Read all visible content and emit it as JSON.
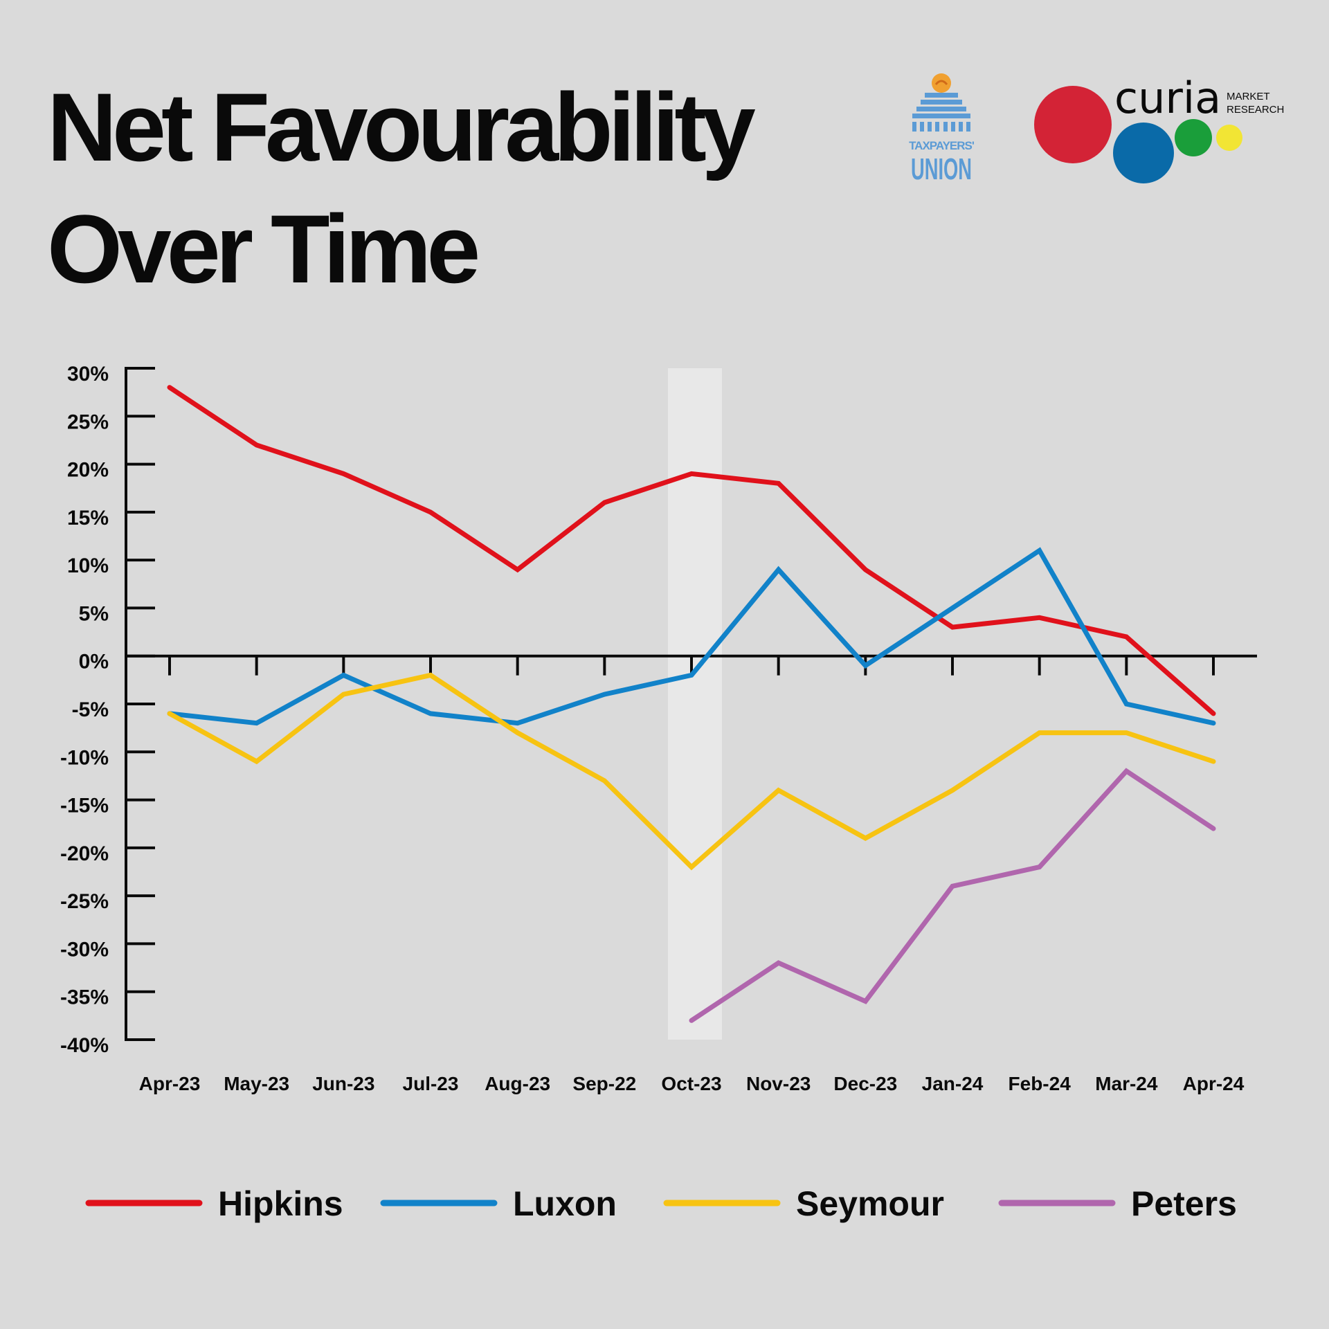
{
  "header": {
    "title_line1": "Net Favourability",
    "title_line2": "Over Time"
  },
  "logos": {
    "taxpayers_union": {
      "line1": "TAXPAYERS'",
      "line2": "UNION",
      "color": "#5b9bd5",
      "dome_color": "#f0a030"
    },
    "curia": {
      "name": "curia",
      "tag_line1": "MARKET",
      "tag_line2": "RESEARCH",
      "dot_colors": [
        "#d32336",
        "#0a6aa8",
        "#1a9e3a",
        "#f2e534"
      ]
    }
  },
  "chart_data": {
    "type": "line",
    "title": "Net Favourability Over Time",
    "xlabel": "",
    "ylabel": "",
    "ylim": [
      -40,
      30
    ],
    "ytick_values": [
      30,
      25,
      20,
      15,
      10,
      5,
      0,
      -5,
      -10,
      -15,
      -20,
      -25,
      -30,
      -35,
      -40
    ],
    "ytick_labels": [
      "30%",
      "25%",
      "20%",
      "15%",
      "10%",
      "5%",
      "0%",
      "-5%",
      "-10%",
      "-15%",
      "-20%",
      "-25%",
      "-30%",
      "-35%",
      "-40%"
    ],
    "categories": [
      "Apr-23",
      "May-23",
      "Jun-23",
      "Jul-23",
      "Aug-23",
      "Sep-22",
      "Oct-23",
      "Nov-23",
      "Dec-23",
      "Jan-24",
      "Feb-24",
      "Mar-24",
      "Apr-24"
    ],
    "highlight_category": "Oct-23",
    "highlight_color": "#e8e8e8",
    "grid": false,
    "legend_position": "bottom",
    "series": [
      {
        "name": "Hipkins",
        "color": "#e0111b",
        "values": [
          28,
          22,
          19,
          15,
          9,
          16,
          19,
          18,
          9,
          3,
          4,
          2,
          -6
        ]
      },
      {
        "name": "Luxon",
        "color": "#1182c9",
        "values": [
          -6,
          -7,
          -2,
          -6,
          -7,
          -4,
          -2,
          9,
          -1,
          5,
          11,
          -5,
          -7
        ]
      },
      {
        "name": "Seymour",
        "color": "#f7c312",
        "values": [
          -6,
          -11,
          -4,
          -2,
          -8,
          -13,
          -22,
          -14,
          -19,
          -14,
          -8,
          -8,
          -11
        ]
      },
      {
        "name": "Peters",
        "color": "#b066ad",
        "values": [
          null,
          null,
          null,
          null,
          null,
          null,
          -38,
          -32,
          -36,
          -24,
          -22,
          -12,
          -18
        ]
      }
    ]
  }
}
